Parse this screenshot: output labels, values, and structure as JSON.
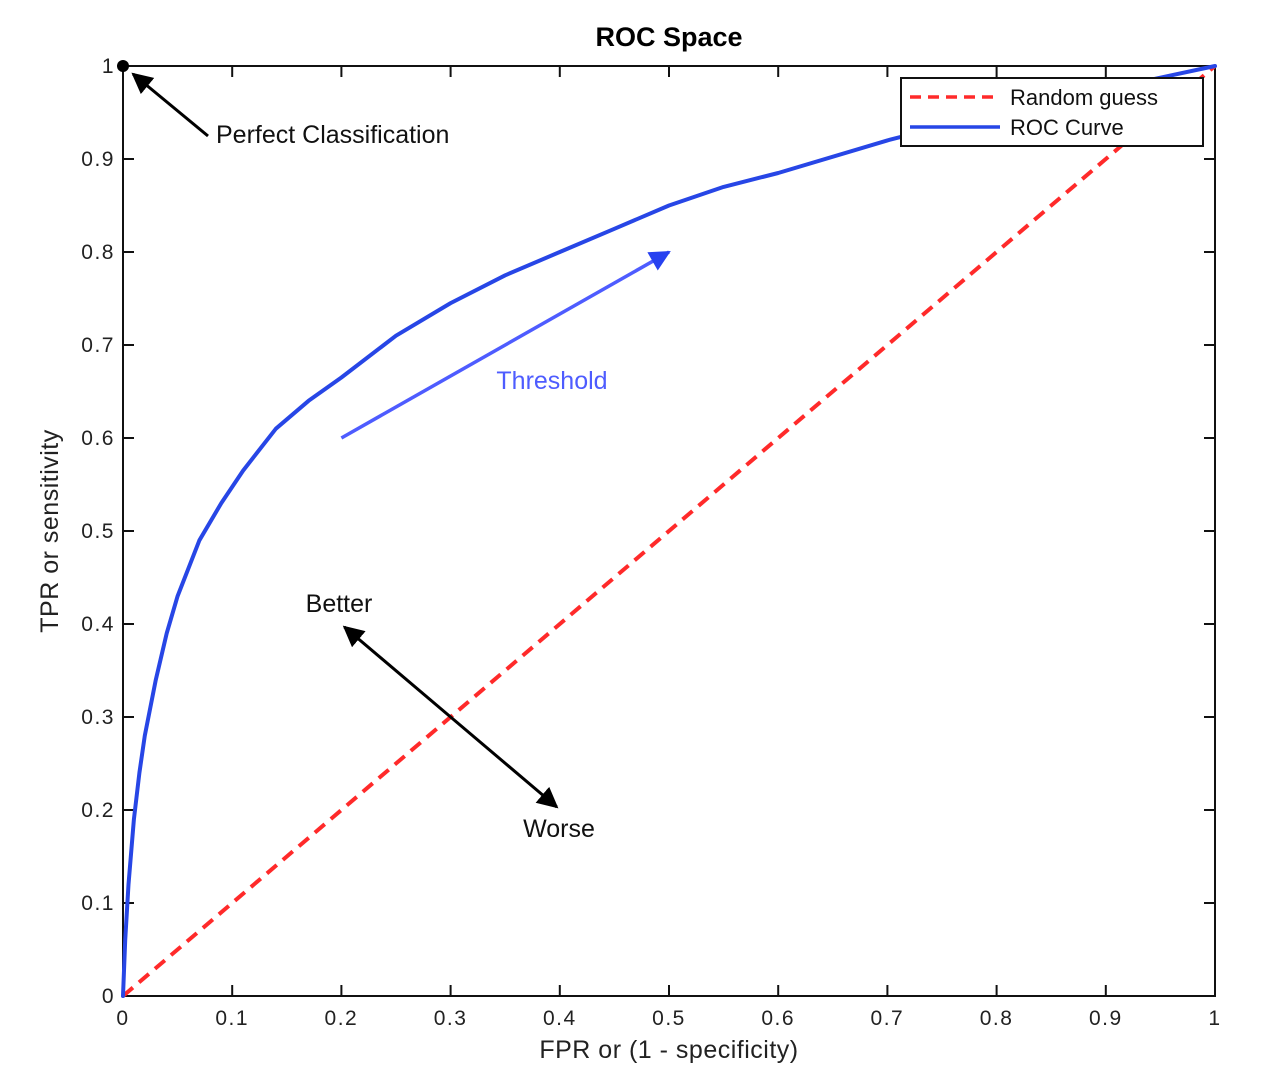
{
  "chart_data": {
    "type": "line",
    "title": "ROC Space",
    "xlabel": "FPR or (1 - specificity)",
    "ylabel": "TPR or sensitivity",
    "xlim": [
      0,
      1
    ],
    "ylim": [
      0,
      1
    ],
    "x_ticks": [
      0,
      0.1,
      0.2,
      0.3,
      0.4,
      0.5,
      0.6,
      0.7,
      0.8,
      0.9,
      1
    ],
    "x_tick_labels": [
      "0",
      "0.1",
      "0.2",
      "0.3",
      "0.4",
      "0.5",
      "0.6",
      "0.7",
      "0.8",
      "0.9",
      "1"
    ],
    "y_ticks": [
      0,
      0.1,
      0.2,
      0.3,
      0.4,
      0.5,
      0.6,
      0.7,
      0.8,
      0.9,
      1
    ],
    "y_tick_labels": [
      "0",
      "0.1",
      "0.2",
      "0.3",
      "0.4",
      "0.5",
      "0.6",
      "0.7",
      "0.8",
      "0.9",
      "1"
    ],
    "grid": false,
    "legend_position": "top-right",
    "series": [
      {
        "name": "Random guess",
        "color": "#ff2a2a",
        "style": "dashed",
        "x": [
          0,
          1
        ],
        "y": [
          0,
          1
        ]
      },
      {
        "name": "ROC Curve",
        "color": "#2746e6",
        "style": "solid",
        "x": [
          0,
          0.002,
          0.005,
          0.01,
          0.015,
          0.02,
          0.03,
          0.04,
          0.05,
          0.07,
          0.09,
          0.11,
          0.14,
          0.17,
          0.2,
          0.25,
          0.3,
          0.35,
          0.4,
          0.45,
          0.5,
          0.55,
          0.6,
          0.7,
          0.8,
          0.9,
          1
        ],
        "y": [
          0,
          0.06,
          0.12,
          0.19,
          0.24,
          0.28,
          0.34,
          0.39,
          0.43,
          0.49,
          0.53,
          0.565,
          0.61,
          0.64,
          0.665,
          0.71,
          0.745,
          0.775,
          0.8,
          0.825,
          0.85,
          0.87,
          0.885,
          0.92,
          0.95,
          0.975,
          1
        ]
      }
    ],
    "annotations": [
      {
        "text": "Perfect Classification",
        "point": [
          0,
          1
        ]
      },
      {
        "text": "Threshold",
        "color": "#4e5cff",
        "arrow_from": [
          0.2,
          0.6
        ],
        "arrow_to": [
          0.5,
          0.8
        ]
      },
      {
        "text": "Better",
        "arrow_to": [
          0.2,
          0.4
        ]
      },
      {
        "text": "Worse",
        "arrow_to": [
          0.4,
          0.2
        ]
      }
    ]
  }
}
